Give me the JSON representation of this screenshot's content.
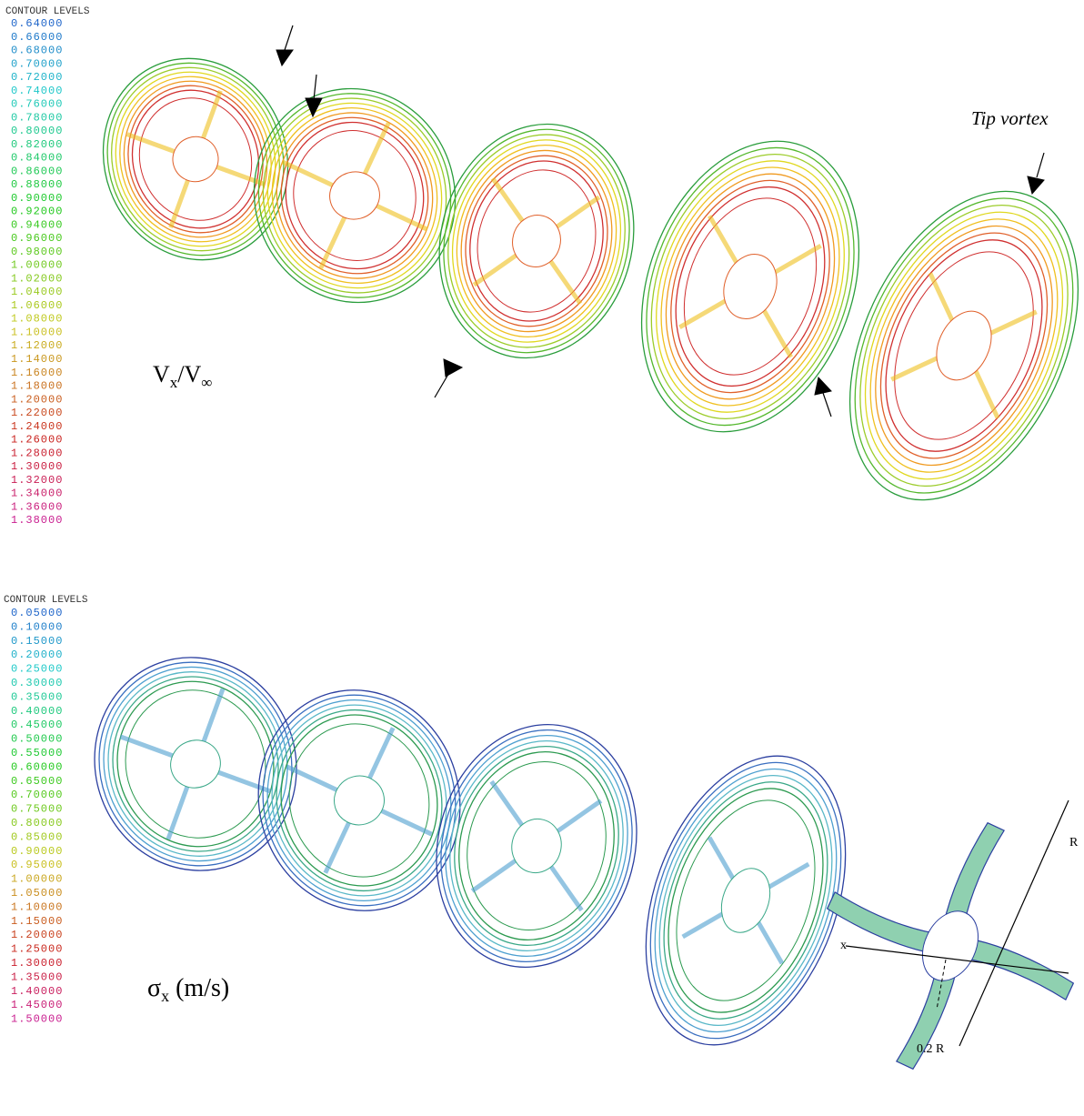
{
  "panels": [
    {
      "legend_title": "CONTOUR LEVELS",
      "levels": [
        "0.64000",
        "0.66000",
        "0.68000",
        "0.70000",
        "0.72000",
        "0.74000",
        "0.76000",
        "0.78000",
        "0.80000",
        "0.82000",
        "0.84000",
        "0.86000",
        "0.88000",
        "0.90000",
        "0.92000",
        "0.94000",
        "0.96000",
        "0.98000",
        "1.00000",
        "1.02000",
        "1.04000",
        "1.06000",
        "1.08000",
        "1.10000",
        "1.12000",
        "1.14000",
        "1.16000",
        "1.18000",
        "1.20000",
        "1.22000",
        "1.24000",
        "1.26000",
        "1.28000",
        "1.30000",
        "1.32000",
        "1.34000",
        "1.36000",
        "1.38000"
      ],
      "label": {
        "symbol": "V",
        "subscript": "x",
        "denominator": "/V",
        "denominator_subscript": "∞"
      },
      "annotations": [
        "Tip vortex"
      ]
    },
    {
      "legend_title": "CONTOUR LEVELS",
      "levels": [
        "0.05000",
        "0.10000",
        "0.15000",
        "0.20000",
        "0.25000",
        "0.30000",
        "0.35000",
        "0.40000",
        "0.45000",
        "0.50000",
        "0.55000",
        "0.60000",
        "0.65000",
        "0.70000",
        "0.75000",
        "0.80000",
        "0.85000",
        "0.90000",
        "0.95000",
        "1.00000",
        "1.05000",
        "1.10000",
        "1.15000",
        "1.20000",
        "1.25000",
        "1.30000",
        "1.35000",
        "1.40000",
        "1.45000",
        "1.50000"
      ],
      "label": {
        "symbol": "σ",
        "subscript": "x",
        "unit": " (m/s)"
      },
      "annotations": [
        "x",
        "R",
        "0.2 R"
      ]
    }
  ]
}
